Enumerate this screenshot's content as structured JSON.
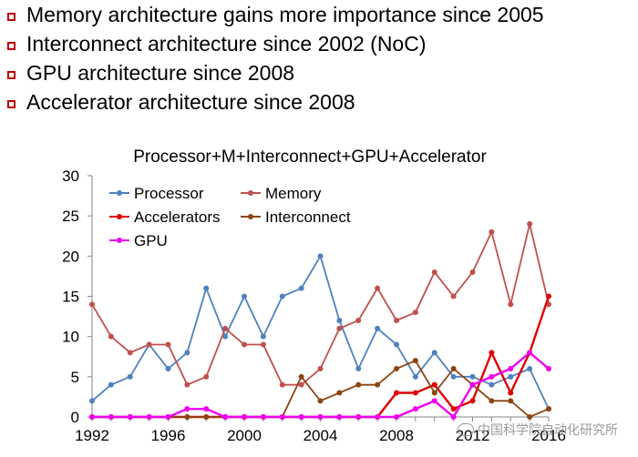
{
  "bullets": [
    "Memory architecture gains more importance since 2005",
    "Interconnect architecture since 2002 (NoC)",
    "GPU architecture since 2008",
    "Accelerator architecture since 2008"
  ],
  "watermark": {
    "text": "中国科学院自动化研究所",
    "icon": "wechat-icon"
  },
  "chart_data": {
    "type": "line",
    "title": "Processor+M+Interconnect+GPU+Accelerator",
    "xlabel": "",
    "ylabel": "",
    "x": [
      1992,
      1993,
      1994,
      1995,
      1996,
      1997,
      1998,
      1999,
      2000,
      2001,
      2002,
      2003,
      2004,
      2005,
      2006,
      2007,
      2008,
      2009,
      2010,
      2011,
      2012,
      2013,
      2014,
      2015,
      2016
    ],
    "x_ticks": [
      "1992",
      "1996",
      "2000",
      "2004",
      "2008",
      "2012",
      "2016"
    ],
    "y_ticks": [
      "0",
      "5",
      "10",
      "15",
      "20",
      "25",
      "30"
    ],
    "ylim": [
      0,
      30
    ],
    "xlim": [
      1992,
      2016
    ],
    "grid": false,
    "legend": "top-left",
    "series": [
      {
        "name": "Processor",
        "color": "#4f81bd",
        "marker": "circle",
        "values": [
          2,
          4,
          5,
          9,
          6,
          8,
          16,
          10,
          15,
          10,
          15,
          16,
          20,
          12,
          6,
          11,
          9,
          5,
          8,
          5,
          5,
          4,
          5,
          6,
          1
        ]
      },
      {
        "name": "Memory",
        "color": "#c0504d",
        "marker": "circle",
        "values": [
          14,
          10,
          8,
          9,
          9,
          4,
          5,
          11,
          9,
          9,
          4,
          4,
          6,
          11,
          12,
          16,
          12,
          13,
          18,
          15,
          18,
          23,
          14,
          24,
          14
        ]
      },
      {
        "name": "Accelerators",
        "color": "#e00000",
        "marker": "circle",
        "values": [
          0,
          0,
          0,
          0,
          0,
          0,
          0,
          0,
          0,
          0,
          0,
          0,
          0,
          0,
          0,
          0,
          3,
          3,
          4,
          1,
          2,
          8,
          3,
          8,
          15
        ]
      },
      {
        "name": "Interconnect",
        "color": "#8b4513",
        "marker": "circle",
        "values": [
          0,
          0,
          0,
          0,
          0,
          0,
          0,
          0,
          0,
          0,
          0,
          5,
          2,
          3,
          4,
          4,
          6,
          7,
          3,
          6,
          4,
          2,
          2,
          0,
          1
        ]
      },
      {
        "name": "GPU",
        "color": "#ee00ee",
        "marker": "circle",
        "values": [
          0,
          0,
          0,
          0,
          0,
          1,
          1,
          0,
          0,
          0,
          0,
          0,
          0,
          0,
          0,
          0,
          0,
          1,
          2,
          0,
          4,
          5,
          6,
          8,
          6
        ]
      }
    ]
  }
}
